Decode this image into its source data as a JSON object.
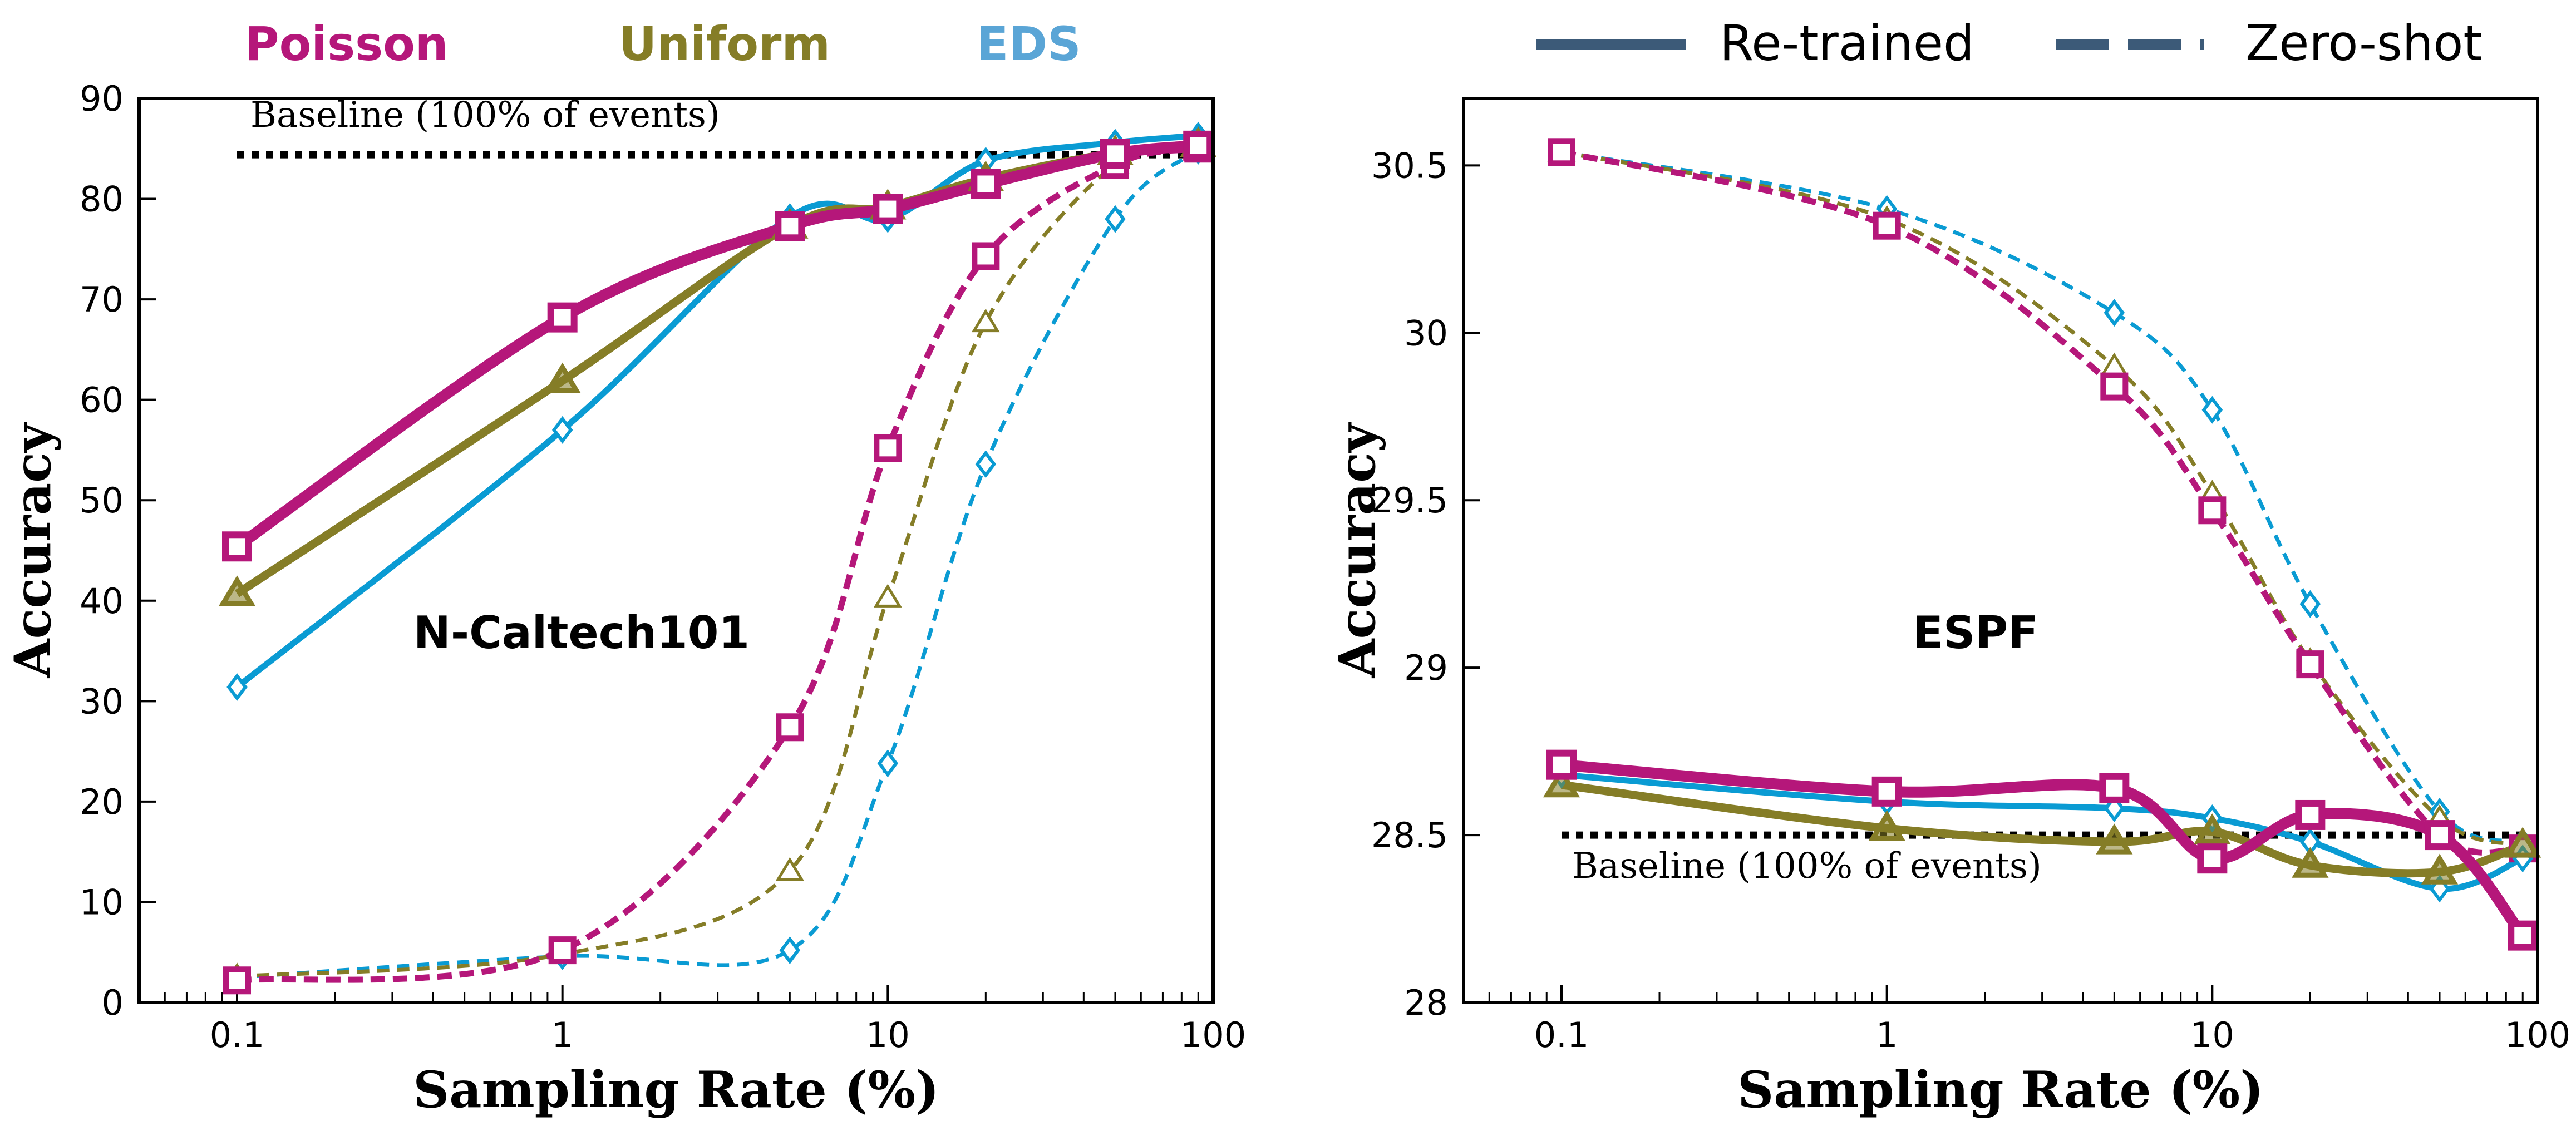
{
  "colors": {
    "Poisson": "#B5177A",
    "Uniform": "#857D27",
    "EDS": "#0A9BD3",
    "legend_line": "#3C5A78",
    "baseline": "#000000"
  },
  "top_labels": {
    "poisson": "Poisson",
    "uniform": "Uniform",
    "eds": "EDS",
    "retrained": "Re-trained",
    "zeroshot": "Zero-shot"
  },
  "chart_data": [
    {
      "type": "line",
      "title": "N-Caltech101",
      "xlabel": "Sampling Rate (%)",
      "ylabel": "Accuracy",
      "xscale": "log",
      "xlim": [
        0.05,
        100
      ],
      "ylim": [
        0,
        90
      ],
      "xticks": [
        0.1,
        1,
        10,
        100
      ],
      "xtick_labels": [
        "0.1",
        "1",
        "10",
        "100"
      ],
      "yticks": [
        0,
        10,
        20,
        30,
        40,
        50,
        60,
        70,
        80,
        90
      ],
      "ytick_labels": [
        "0",
        "10",
        "20",
        "30",
        "40",
        "50",
        "60",
        "70",
        "80",
        "90"
      ],
      "baseline": {
        "label": "Baseline (100% of events)",
        "value": 84.4
      },
      "x": [
        0.1,
        1,
        5,
        10,
        20,
        50,
        90
      ],
      "series": [
        {
          "name": "Poisson",
          "mode": "Re-trained",
          "values": [
            45.4,
            68.2,
            77.3,
            79.0,
            81.5,
            84.5,
            85.3
          ]
        },
        {
          "name": "Uniform",
          "mode": "Re-trained",
          "values": [
            40.7,
            61.9,
            77.3,
            79.2,
            82.0,
            84.6,
            85.4
          ]
        },
        {
          "name": "EDS",
          "mode": "Re-trained",
          "values": [
            31.4,
            57.0,
            78.2,
            78.0,
            83.8,
            85.6,
            86.3
          ]
        },
        {
          "name": "Poisson",
          "mode": "Zero-shot",
          "values": [
            2.2,
            5.2,
            27.4,
            55.2,
            74.3,
            83.4,
            85.0
          ]
        },
        {
          "name": "Uniform",
          "mode": "Zero-shot",
          "values": [
            2.6,
            4.8,
            13.1,
            40.3,
            67.7,
            83.5,
            85.1
          ]
        },
        {
          "name": "EDS",
          "mode": "Zero-shot",
          "values": [
            2.5,
            4.6,
            5.2,
            23.8,
            53.6,
            78.0,
            84.8
          ]
        }
      ]
    },
    {
      "type": "line",
      "title": "ESPF",
      "xlabel": "Sampling Rate (%)",
      "ylabel": "Accuracy",
      "xscale": "log",
      "xlim": [
        0.05,
        100
      ],
      "ylim": [
        28,
        30.7
      ],
      "xticks": [
        0.1,
        1,
        10,
        100
      ],
      "xtick_labels": [
        "0.1",
        "1",
        "10",
        "100"
      ],
      "yticks": [
        28,
        28.5,
        29,
        29.5,
        30,
        30.5
      ],
      "ytick_labels": [
        "28",
        "28.5",
        "29",
        "29.5",
        "30",
        "30.5"
      ],
      "baseline": {
        "label": "Baseline (100% of events)",
        "value": 28.5
      },
      "x": [
        0.1,
        1,
        5,
        10,
        20,
        50,
        90
      ],
      "series": [
        {
          "name": "Poisson",
          "mode": "Re-trained",
          "values": [
            28.71,
            28.63,
            28.64,
            28.43,
            28.56,
            28.5,
            28.2
          ]
        },
        {
          "name": "Uniform",
          "mode": "Re-trained",
          "values": [
            28.65,
            28.52,
            28.48,
            28.51,
            28.41,
            28.39,
            28.47
          ]
        },
        {
          "name": "EDS",
          "mode": "Re-trained",
          "values": [
            28.68,
            28.6,
            28.58,
            28.55,
            28.48,
            28.34,
            28.43
          ]
        },
        {
          "name": "Poisson",
          "mode": "Zero-shot",
          "values": [
            30.54,
            30.32,
            29.84,
            29.47,
            29.01,
            28.5,
            28.46
          ]
        },
        {
          "name": "Uniform",
          "mode": "Zero-shot",
          "values": [
            30.54,
            30.34,
            29.9,
            29.52,
            29.02,
            28.55,
            28.47
          ]
        },
        {
          "name": "EDS",
          "mode": "Zero-shot",
          "values": [
            30.54,
            30.37,
            30.06,
            29.77,
            29.19,
            28.57,
            28.48
          ]
        }
      ]
    }
  ]
}
